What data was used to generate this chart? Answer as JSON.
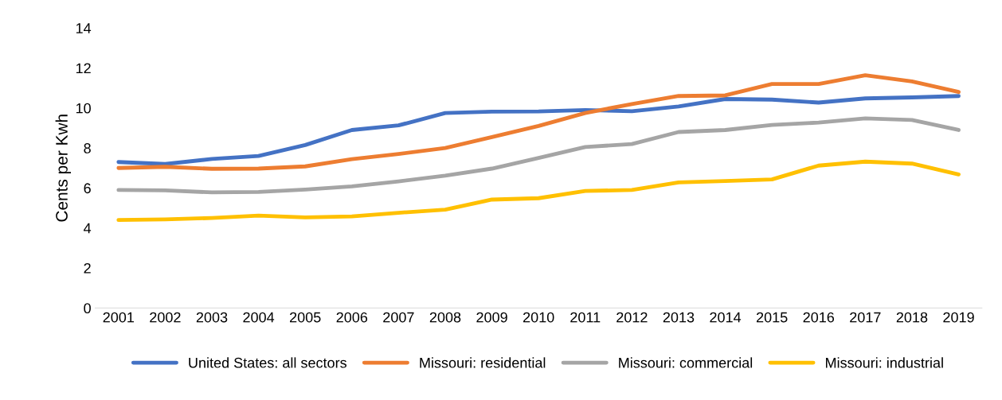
{
  "chart_data": {
    "type": "line",
    "ylabel": "Cents per Kwh",
    "categories": [
      "2001",
      "2002",
      "2003",
      "2004",
      "2005",
      "2006",
      "2007",
      "2008",
      "2009",
      "2010",
      "2011",
      "2012",
      "2013",
      "2014",
      "2015",
      "2016",
      "2017",
      "2018",
      "2019"
    ],
    "series": [
      {
        "name": "United States: all sectors",
        "color": "#4472c4",
        "values": [
          7.3,
          7.2,
          7.45,
          7.6,
          8.15,
          8.9,
          9.13,
          9.75,
          9.82,
          9.83,
          9.9,
          9.84,
          10.08,
          10.45,
          10.42,
          10.27,
          10.48,
          10.53,
          10.6
        ]
      },
      {
        "name": "Missouri: residential",
        "color": "#ed7d31",
        "values": [
          7.0,
          7.06,
          6.96,
          6.97,
          7.08,
          7.44,
          7.7,
          8.0,
          8.55,
          9.1,
          9.75,
          10.2,
          10.6,
          10.63,
          11.2,
          11.2,
          11.64,
          11.33,
          10.8
        ]
      },
      {
        "name": "Missouri: commercial",
        "color": "#a5a5a5",
        "values": [
          5.9,
          5.88,
          5.78,
          5.8,
          5.92,
          6.08,
          6.33,
          6.62,
          6.97,
          7.5,
          8.05,
          8.2,
          8.8,
          8.9,
          9.15,
          9.27,
          9.48,
          9.4,
          8.9
        ]
      },
      {
        "name": "Missouri: industrial",
        "color": "#ffc000",
        "values": [
          4.4,
          4.43,
          4.5,
          4.62,
          4.53,
          4.58,
          4.76,
          4.92,
          5.42,
          5.49,
          5.85,
          5.9,
          6.28,
          6.35,
          6.43,
          7.12,
          7.32,
          7.22,
          6.68
        ]
      }
    ],
    "ylim": [
      0,
      14
    ],
    "yticks": [
      0,
      2,
      4,
      6,
      8,
      10,
      12,
      14
    ],
    "grid": false,
    "legend": "bottom",
    "marker": "none",
    "line_style": "solid"
  }
}
